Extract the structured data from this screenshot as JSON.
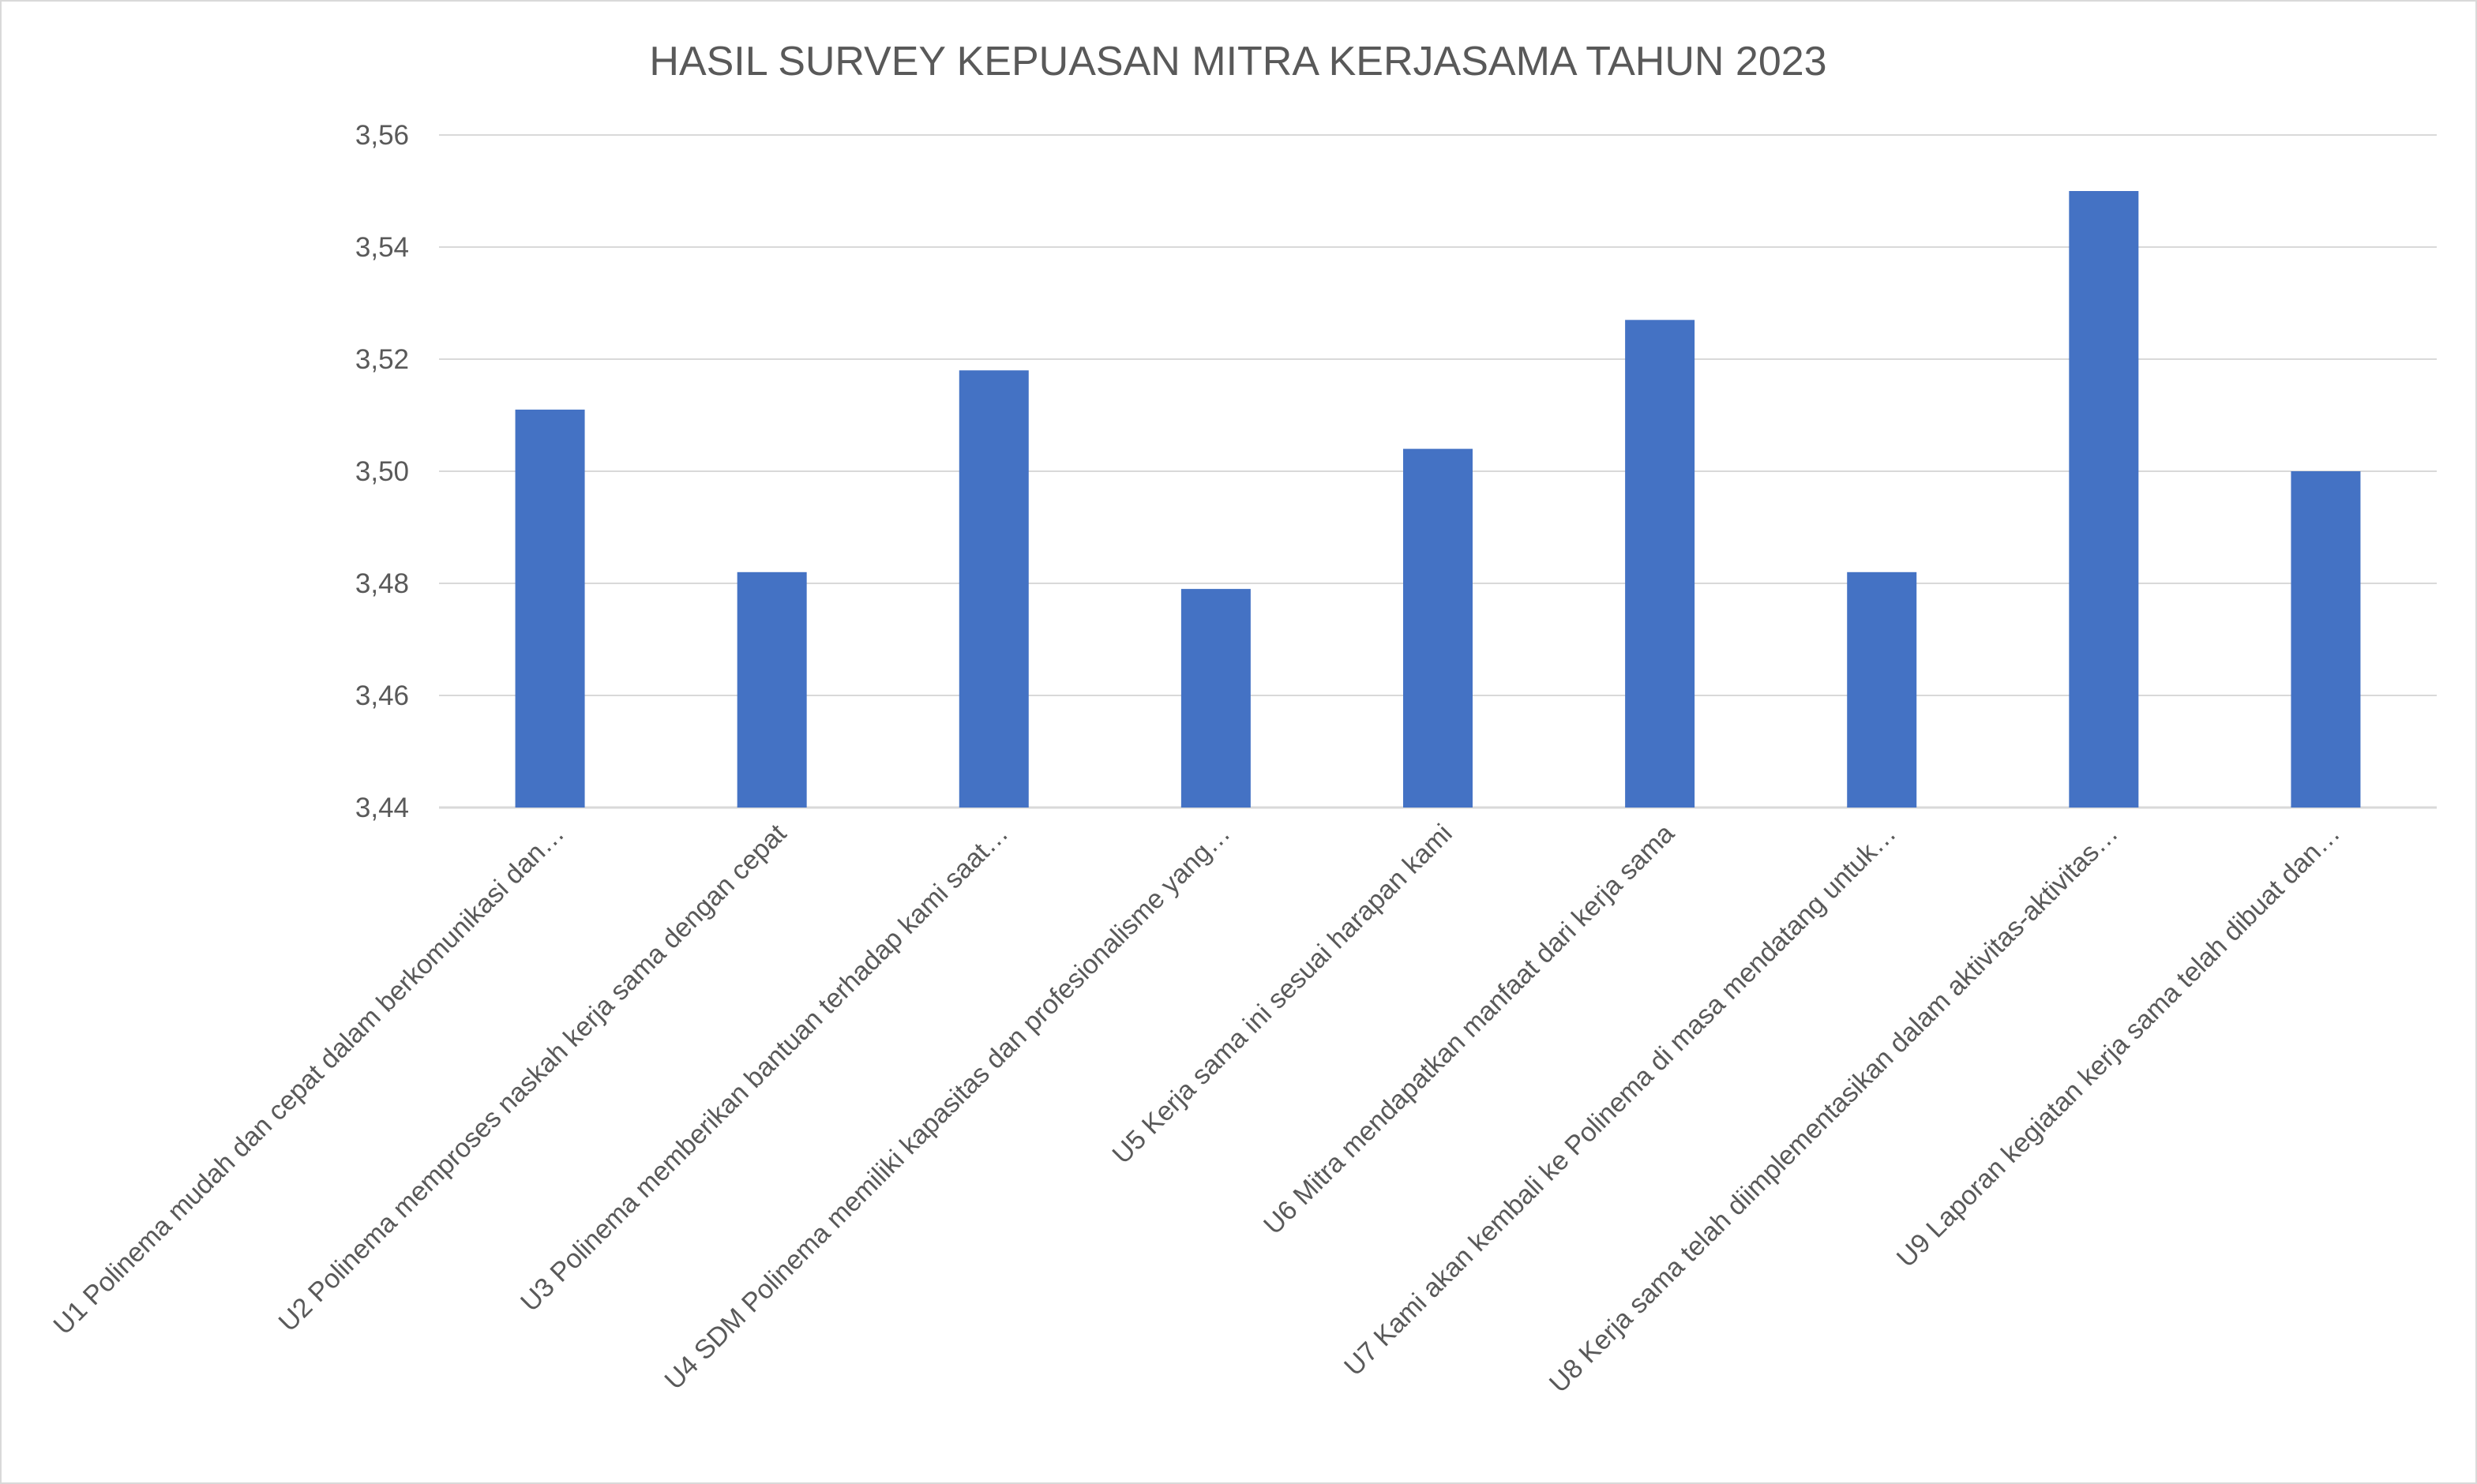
{
  "chart_data": {
    "type": "bar",
    "title": "HASIL SURVEY KEPUASAN MITRA KERJASAMA TAHUN 2023",
    "xlabel": "",
    "ylabel": "",
    "ylim": [
      3.44,
      3.56
    ],
    "yticks": [
      "3,44",
      "3,46",
      "3,48",
      "3,50",
      "3,52",
      "3,54",
      "3,56"
    ],
    "grid": true,
    "legend": "none",
    "bar_color": "#4472C4",
    "categories": [
      "U1 Polinema mudah dan cepat dalam berkomunikasi dan…",
      "U2 Polinema memproses naskah kerja sama dengan cepat",
      "U3 Polinema memberikan bantuan terhadap kami saat…",
      "U4 SDM Polinema memiliki kapasitas dan profesionalisme yang…",
      "U5 Kerja sama ini sesuai harapan kami",
      "U6 Mitra mendapatkan manfaat dari kerja sama",
      "U7 Kami akan kembali ke Polinema di masa mendatang untuk…",
      "U8 Kerja sama telah diimplementasikan dalam aktivitas-aktivitas…",
      "U9 Laporan kegiatan kerja sama telah dibuat dan…"
    ],
    "values": [
      3.511,
      3.482,
      3.518,
      3.479,
      3.504,
      3.527,
      3.482,
      3.55,
      3.5
    ]
  }
}
